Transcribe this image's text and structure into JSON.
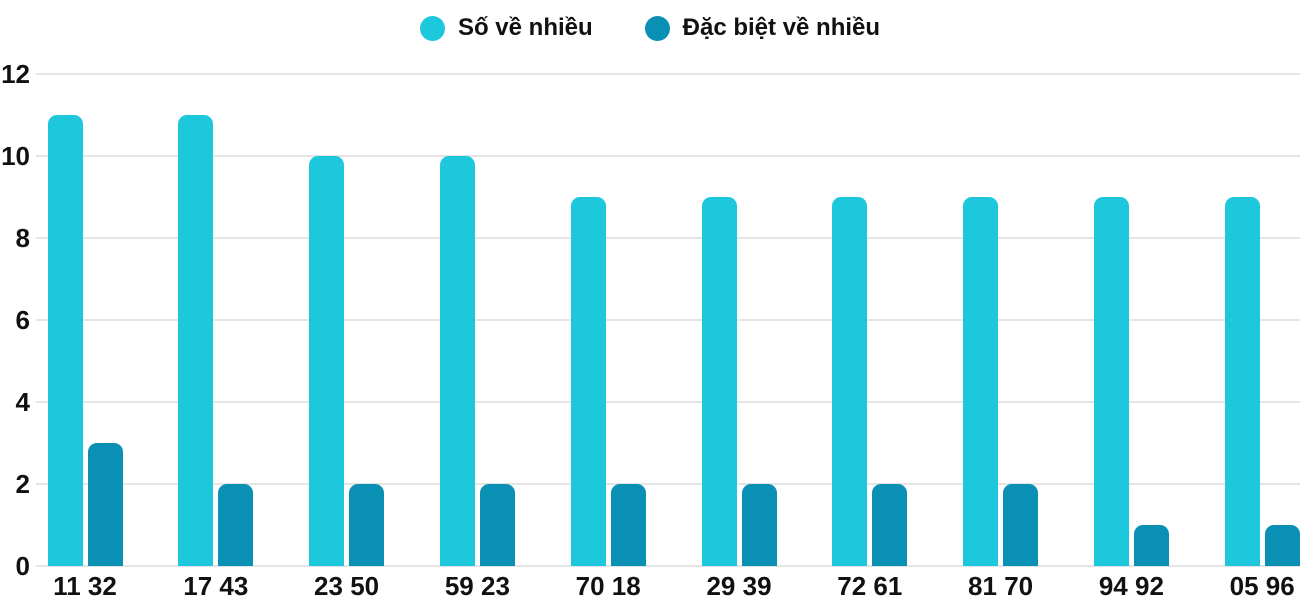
{
  "chart_data": {
    "type": "bar",
    "title": "",
    "xlabel": "",
    "ylabel": "",
    "categories": [
      "11 32",
      "17 43",
      "23 50",
      "59 23",
      "70 18",
      "29 39",
      "72 61",
      "81 70",
      "94 92",
      "05 96"
    ],
    "series": [
      {
        "name": "Số về nhiều",
        "color": "#1ec8dc",
        "values": [
          11,
          11,
          10,
          10,
          9,
          9,
          9,
          9,
          9,
          9
        ]
      },
      {
        "name": "Đặc biệt về nhiều",
        "color": "#0a90b4",
        "values": [
          3,
          2,
          2,
          2,
          2,
          2,
          2,
          2,
          1,
          1
        ]
      }
    ],
    "y_axis": {
      "min": 0,
      "max": 12,
      "ticks": [
        0,
        2,
        4,
        6,
        8,
        10,
        12
      ]
    },
    "grid": true,
    "legend_position": "top-center",
    "text_color": "#111111",
    "gridline_color": "#e4e4e4",
    "background_color": "#ffffff"
  }
}
